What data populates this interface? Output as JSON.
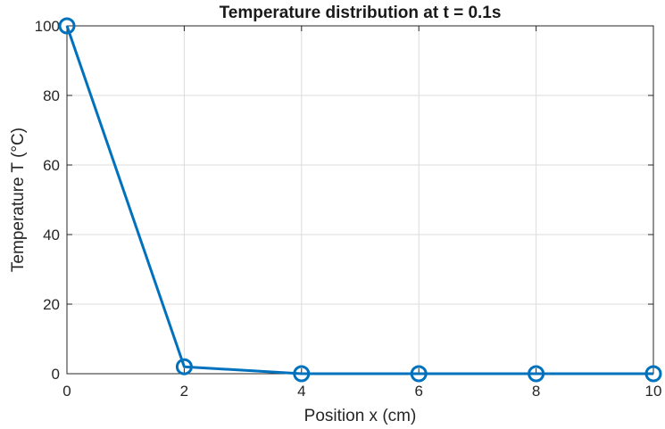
{
  "chart_data": {
    "type": "line",
    "title": "Temperature distribution at t = 0.1s",
    "xlabel": "Position x (cm)",
    "ylabel": "Temperature T (°C)",
    "x": [
      0,
      2,
      4,
      6,
      8,
      10
    ],
    "series": [
      {
        "values": [
          100,
          2,
          0,
          0,
          0,
          0
        ],
        "marker": "circle",
        "color": "#0072BD"
      }
    ],
    "xlim": [
      0,
      10
    ],
    "ylim": [
      0,
      100
    ],
    "xticks": [
      0,
      2,
      4,
      6,
      8,
      10
    ],
    "yticks": [
      0,
      20,
      40,
      60,
      80,
      100
    ],
    "grid": true,
    "colors": {
      "line": "#0072BD",
      "grid": "#dcdcdc",
      "axis": "#262626"
    }
  }
}
